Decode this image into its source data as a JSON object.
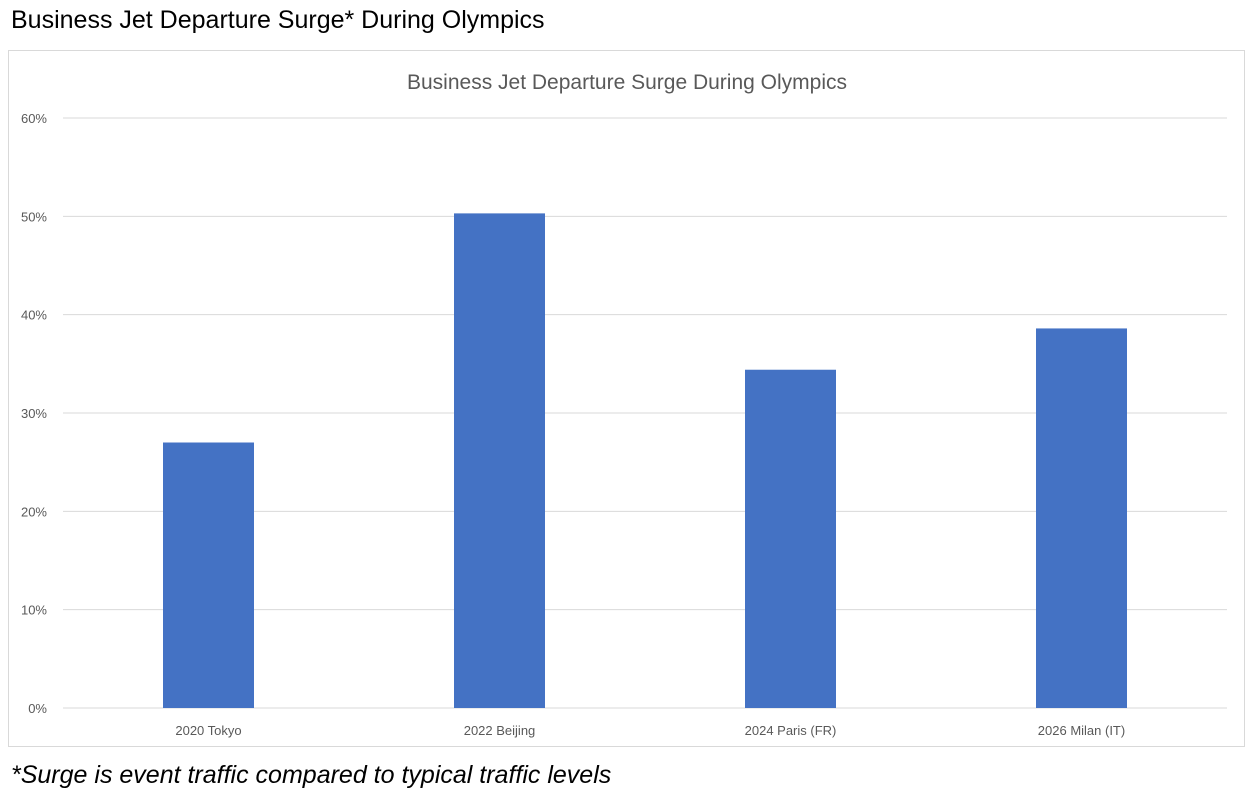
{
  "page_title": "Business Jet Departure Surge* During Olympics",
  "footnote": "*Surge is event traffic compared to typical traffic levels",
  "chart_data": {
    "type": "bar",
    "title": "Business Jet Departure Surge During Olympics",
    "categories": [
      "2020 Tokyo",
      "2022 Beijing",
      "2024 Paris (FR)",
      "2026 Milan (IT)"
    ],
    "values": [
      27.0,
      50.3,
      34.4,
      38.6
    ],
    "xlabel": "",
    "ylabel": "",
    "ylim": [
      0,
      60
    ],
    "yticks": [
      0,
      10,
      20,
      30,
      40,
      50,
      60
    ],
    "ytick_labels": [
      "0%",
      "10%",
      "20%",
      "30%",
      "40%",
      "50%",
      "60%"
    ],
    "grid": true,
    "legend": "none",
    "colors": {
      "bar": "#4472C4",
      "grid": "#d9d9d9",
      "text": "#595959"
    }
  }
}
